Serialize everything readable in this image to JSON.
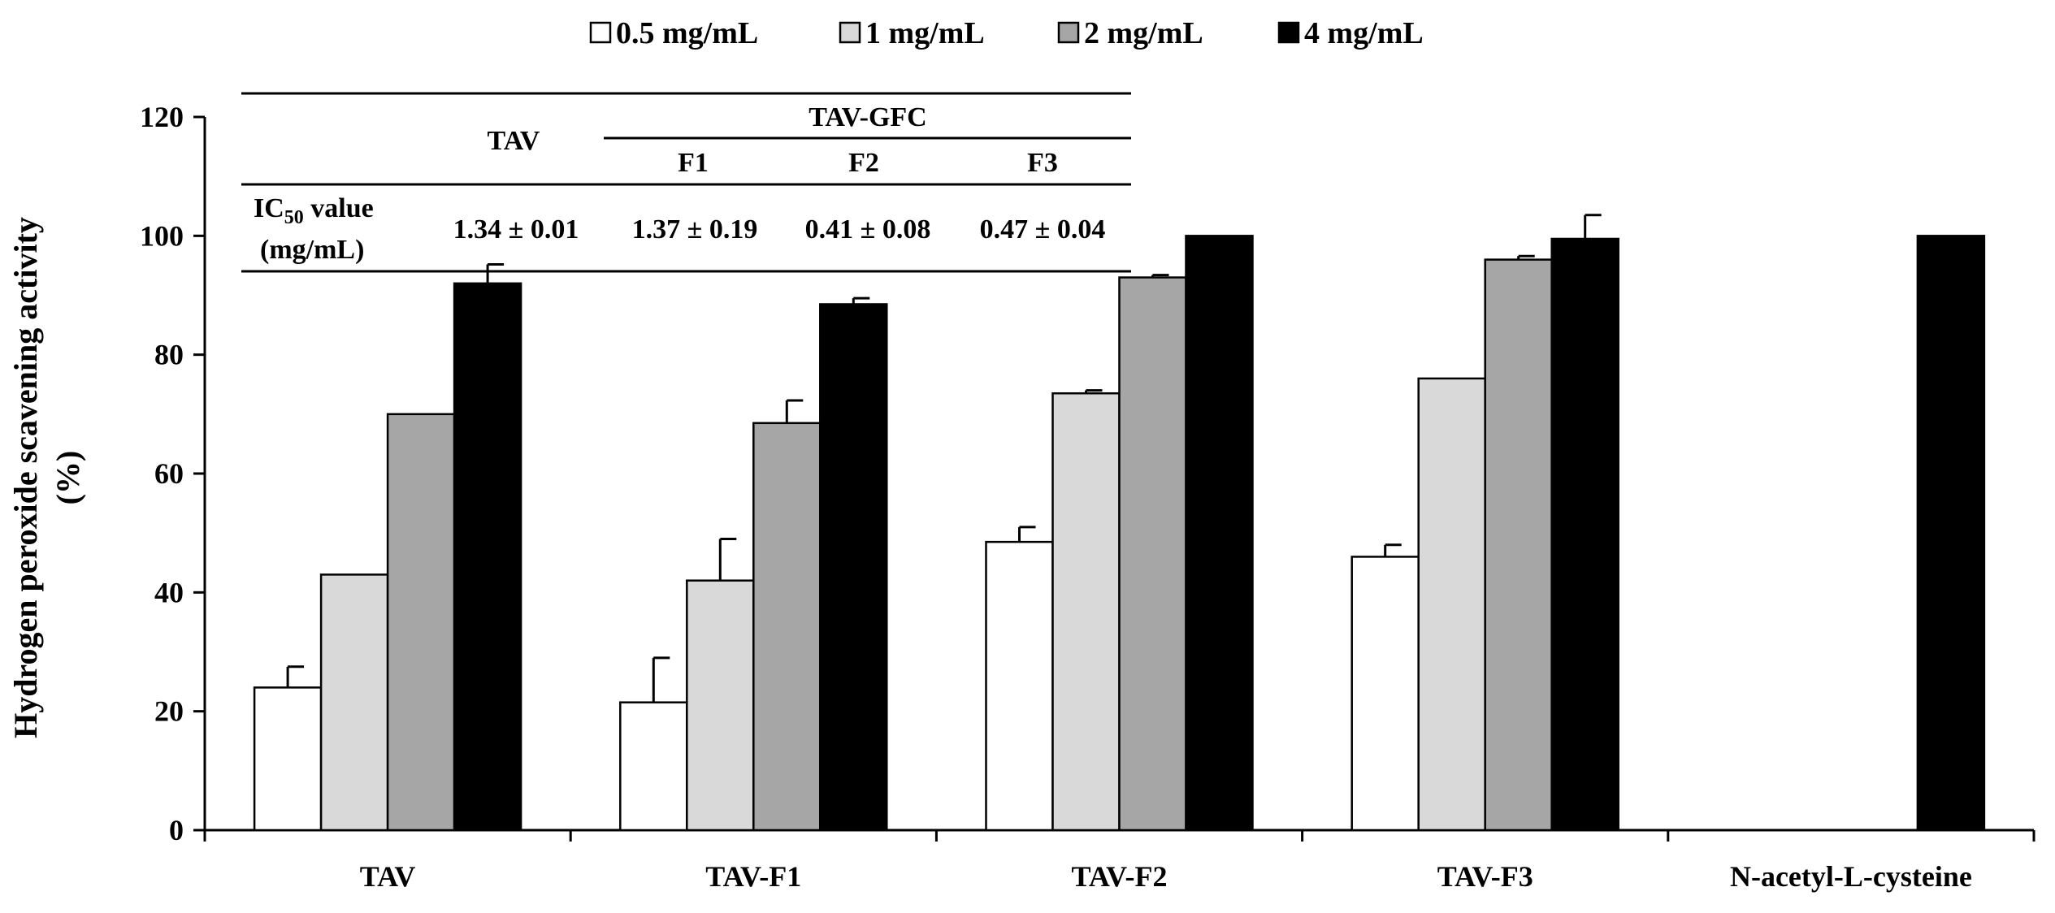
{
  "chart_data": {
    "type": "bar",
    "title": "",
    "xlabel": "",
    "ylabel": "Hydrogen peroxide scavening activity",
    "ylabel_unit": "(%)",
    "ylim": [
      0,
      120
    ],
    "yticks": [
      0,
      20,
      40,
      60,
      80,
      100,
      120
    ],
    "categories": [
      "TAV",
      "TAV-F1",
      "TAV-F2",
      "TAV-F3",
      "N-acetyl-L-cysteine"
    ],
    "series": [
      {
        "name": "0.5 mg/mL",
        "color": "#ffffff",
        "values": [
          24,
          21.5,
          48.5,
          46,
          null
        ],
        "errors": [
          3.5,
          7.5,
          2.5,
          2,
          null
        ]
      },
      {
        "name": "1 mg/mL",
        "color": "#d9d9d9",
        "values": [
          43,
          42,
          73.5,
          76,
          null
        ],
        "errors": [
          0,
          7,
          0.5,
          0,
          null
        ]
      },
      {
        "name": "2 mg/mL",
        "color": "#a6a6a6",
        "values": [
          70,
          68.5,
          93,
          96,
          null
        ],
        "errors": [
          0,
          3.8,
          0.4,
          0.6,
          null
        ]
      },
      {
        "name": "4 mg/mL",
        "color": "#000000",
        "values": [
          92,
          88.5,
          100,
          99.5,
          100
        ],
        "errors": [
          3.2,
          1,
          0,
          4,
          0
        ]
      }
    ],
    "legend_position": "top-center",
    "grid": false,
    "ic50_table": {
      "group_tav": "TAV",
      "group_gfc": "TAV-GFC",
      "sub_f1": "F1",
      "sub_f2": "F2",
      "sub_f3": "F3",
      "row_label_line1": "IC",
      "row_label_sub": "50",
      "row_label_rest": " value",
      "row_label_line2": "(mg/mL)",
      "values": [
        "1.34 ± 0.01",
        "1.37 ± 0.19",
        "0.41 ± 0.08",
        "0.47 ± 0.04"
      ]
    }
  }
}
